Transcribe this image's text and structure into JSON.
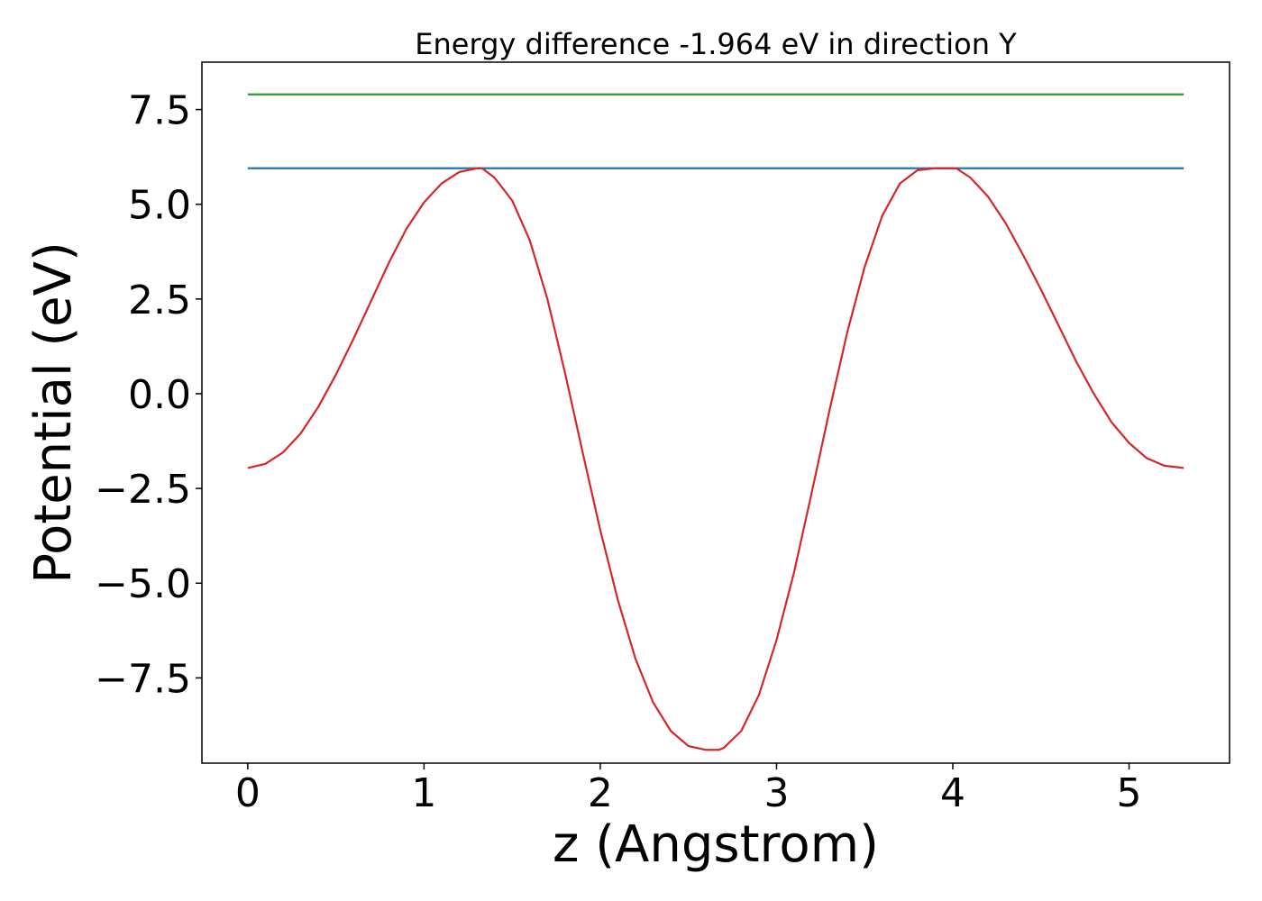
{
  "chart_data": {
    "type": "line",
    "title": "Energy difference -1.964 eV in direction Y",
    "xlabel": "z (Angstrom)",
    "ylabel": "Potential (eV)",
    "xlim": [
      -0.26,
      5.57
    ],
    "ylim": [
      -9.75,
      8.75
    ],
    "grid": false,
    "xticks": [
      0,
      1,
      2,
      3,
      4,
      5
    ],
    "xtick_labels": [
      "0",
      "1",
      "2",
      "3",
      "4",
      "5"
    ],
    "yticks": [
      -7.5,
      -5.0,
      -2.5,
      0.0,
      2.5,
      5.0,
      7.5
    ],
    "ytick_labels": [
      "−7.5",
      "−5.0",
      "−2.5",
      "0.0",
      "2.5",
      "5.0",
      "7.5"
    ],
    "series": [
      {
        "color": "#d62728",
        "x": [
          0.0,
          0.1,
          0.2,
          0.3,
          0.4,
          0.5,
          0.6,
          0.7,
          0.8,
          0.9,
          1.0,
          1.1,
          1.2,
          1.3,
          1.33,
          1.4,
          1.5,
          1.6,
          1.7,
          1.8,
          1.9,
          2.0,
          2.1,
          2.2,
          2.3,
          2.4,
          2.5,
          2.6,
          2.67,
          2.7,
          2.8,
          2.9,
          3.0,
          3.1,
          3.2,
          3.3,
          3.4,
          3.5,
          3.6,
          3.7,
          3.8,
          3.9,
          4.0,
          4.02,
          4.1,
          4.2,
          4.3,
          4.4,
          4.5,
          4.6,
          4.7,
          4.8,
          4.9,
          5.0,
          5.1,
          5.2,
          5.31
        ],
        "y": [
          -1.96,
          -1.85,
          -1.55,
          -1.05,
          -0.35,
          0.5,
          1.45,
          2.45,
          3.45,
          4.35,
          5.05,
          5.55,
          5.85,
          5.95,
          5.95,
          5.7,
          5.1,
          4.05,
          2.5,
          0.55,
          -1.55,
          -3.6,
          -5.45,
          -7.0,
          -8.15,
          -8.9,
          -9.3,
          -9.4,
          -9.4,
          -9.35,
          -8.9,
          -7.95,
          -6.5,
          -4.7,
          -2.6,
          -0.45,
          1.6,
          3.35,
          4.7,
          5.55,
          5.9,
          5.95,
          5.95,
          5.95,
          5.7,
          5.2,
          4.5,
          3.65,
          2.75,
          1.8,
          0.85,
          0.0,
          -0.75,
          -1.3,
          -1.7,
          -1.9,
          -1.96
        ]
      },
      {
        "color": "#1f77b4",
        "x": [
          0.0,
          5.31
        ],
        "y": [
          5.95,
          5.95
        ]
      },
      {
        "color": "#2ca02c",
        "x": [
          0.0,
          5.31
        ],
        "y": [
          7.9,
          7.9
        ]
      }
    ]
  }
}
